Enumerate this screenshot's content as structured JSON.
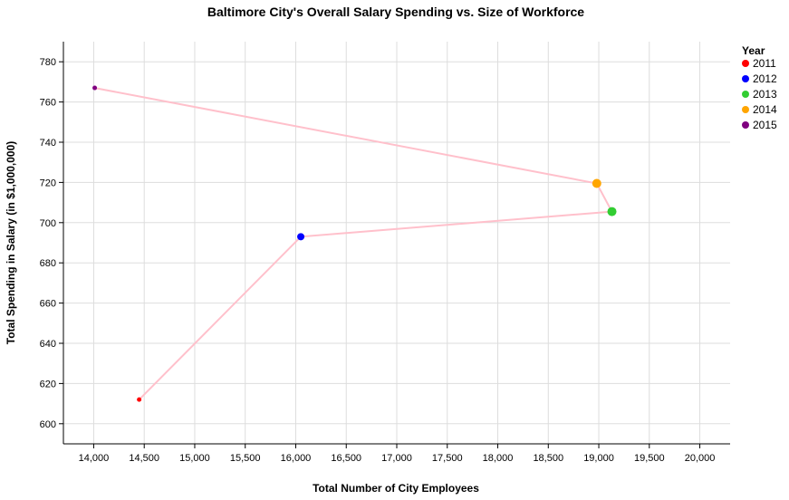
{
  "chart_data": {
    "type": "scatter",
    "title": "Baltimore City's Overall Salary Spending vs. Size of Workforce",
    "xlabel": "Total Number of City Employees",
    "ylabel": "Total Spending in Salary (in $1,000,000)",
    "xlim": [
      13700,
      20300
    ],
    "ylim": [
      590,
      790
    ],
    "xticks": [
      14000,
      14500,
      15000,
      15500,
      16000,
      16500,
      17000,
      17500,
      18000,
      18500,
      19000,
      19500,
      20000
    ],
    "yticks": [
      600,
      620,
      640,
      660,
      680,
      700,
      720,
      740,
      760,
      780
    ],
    "grid": true,
    "connect_points": true,
    "line_color": "#ffc0cb",
    "legend": {
      "title": "Year",
      "position": "top-right"
    },
    "points": [
      {
        "year": "2011",
        "x": 14450,
        "y": 612,
        "color": "#ff0000",
        "size": "small"
      },
      {
        "year": "2012",
        "x": 16050,
        "y": 693,
        "color": "#0000ff",
        "size": "medium"
      },
      {
        "year": "2013",
        "x": 19130,
        "y": 705.5,
        "color": "#32cd32",
        "size": "large"
      },
      {
        "year": "2014",
        "x": 18980,
        "y": 719.5,
        "color": "#ffa500",
        "size": "large"
      },
      {
        "year": "2015",
        "x": 14010,
        "y": 767,
        "color": "#800080",
        "size": "small"
      }
    ]
  }
}
